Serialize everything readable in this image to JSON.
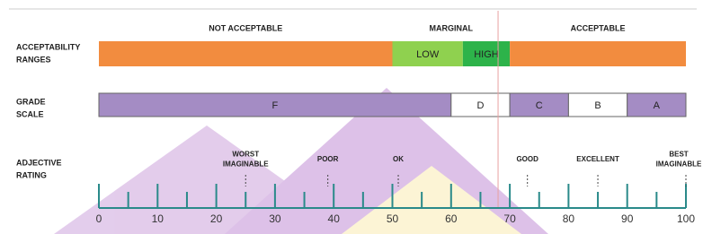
{
  "row_labels": {
    "acceptability": [
      "ACCEPTABILITY",
      "RANGES"
    ],
    "grade": [
      "GRADE",
      "SCALE"
    ],
    "adjective": [
      "ADJECTIVE",
      "RATING"
    ]
  },
  "scale": {
    "min": 0,
    "max": 100,
    "ticks": [
      0,
      5,
      10,
      15,
      20,
      25,
      30,
      35,
      40,
      45,
      50,
      55,
      60,
      65,
      70,
      75,
      80,
      85,
      90,
      95,
      100
    ],
    "labels": [
      0,
      10,
      20,
      30,
      40,
      50,
      60,
      70,
      80,
      90,
      100
    ],
    "color": "#2a8a8a"
  },
  "reference_line": 68,
  "acceptability": {
    "headers": [
      {
        "label": "NOT ACCEPTABLE",
        "from": 0,
        "to": 50
      },
      {
        "label": "MARGINAL",
        "from": 50,
        "to": 70
      },
      {
        "label": "ACCEPTABLE",
        "from": 70,
        "to": 100
      }
    ],
    "segments": [
      {
        "from": 0,
        "to": 50,
        "color": "#f28c3f"
      },
      {
        "label": "LOW",
        "from": 50,
        "to": 62,
        "color": "#8fd14f"
      },
      {
        "label": "HIGH",
        "from": 62,
        "to": 70,
        "color": "#2db34a"
      },
      {
        "from": 70,
        "to": 100,
        "color": "#f28c3f"
      }
    ]
  },
  "grades": [
    {
      "label": "F",
      "from": 0,
      "to": 60,
      "color": "#a48cc4"
    },
    {
      "label": "D",
      "from": 60,
      "to": 70,
      "color": "#ffffff"
    },
    {
      "label": "C",
      "from": 70,
      "to": 80,
      "color": "#a48cc4"
    },
    {
      "label": "B",
      "from": 80,
      "to": 90,
      "color": "#ffffff"
    },
    {
      "label": "A",
      "from": 90,
      "to": 100,
      "color": "#a48cc4"
    }
  ],
  "adjectives": [
    {
      "lines": [
        "WORST",
        "IMAGINABLE"
      ],
      "value": 25
    },
    {
      "lines": [
        "POOR"
      ],
      "value": 39
    },
    {
      "lines": [
        "OK"
      ],
      "value": 51
    },
    {
      "lines": [
        "GOOD"
      ],
      "value": 73
    },
    {
      "lines": [
        "EXCELLENT"
      ],
      "value": 85
    },
    {
      "lines": [
        "BEST",
        "IMAGINABLE"
      ],
      "value": 100
    }
  ]
}
